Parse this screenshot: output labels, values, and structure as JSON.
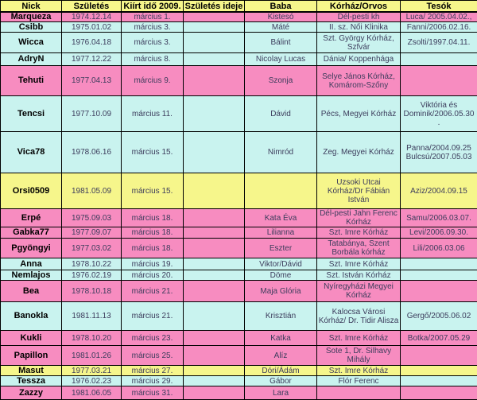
{
  "colors": {
    "header": "#f6f68b",
    "pink": "#f78cc0",
    "cyan": "#c9f3ef",
    "yellow": "#f6f68b",
    "border": "#000000",
    "data_text": "#3c3c5c"
  },
  "chart_data": {
    "type": "table",
    "title": "",
    "columns": [
      "Nick",
      "Születés",
      "Kiírt idő 2009.",
      "Születés ideje",
      "Baba",
      "Kórház/Orvos",
      "Tesók"
    ],
    "rows": [
      {
        "cells": [
          "Marqueza",
          "1974.12.14",
          "március 1.",
          "",
          "Kistesó",
          "Dél-pesti kh",
          "Luca/ 2005.04.02.,"
        ],
        "color": "pink",
        "height": 12
      },
      {
        "cells": [
          "Csibb",
          "1975.01.02",
          "március 3.",
          "",
          "Máté",
          "II. sz. Női Klinika",
          "Fanni/2006.02.16."
        ],
        "color": "cyan",
        "height": 13
      },
      {
        "cells": [
          "Wicca",
          "1976.04.18",
          "március 3.",
          "",
          "Bálint",
          "Szt. György Kórház, Szfvár",
          "Zsolti/1997.04.11."
        ],
        "color": "cyan",
        "height": 26
      },
      {
        "cells": [
          "AdryN",
          "1977.12.22",
          "március 8.",
          "",
          "Nicolay Lucas",
          "Dánia/ Koppenhága",
          ""
        ],
        "color": "cyan",
        "height": 16
      },
      {
        "cells": [
          "Tehuti",
          "1977.04.13",
          "március 9.",
          "",
          "Szonja",
          "Selye János Kórház, Komárom-Szőny",
          ""
        ],
        "color": "pink",
        "height": 38
      },
      {
        "cells": [
          "Tencsi",
          "1977.10.09",
          "március 11.",
          "",
          "Dávid",
          "Pécs, Megyei Kórház",
          "Viktória és Dominik/2006.05.30 ."
        ],
        "color": "cyan",
        "height": 45
      },
      {
        "cells": [
          "Vica78",
          "1978.06.16",
          "március 15.",
          "",
          "Nimród",
          "Zeg. Megyei Kórház",
          "Panna/2004.09.25 Bulcsú/2007.05.03"
        ],
        "color": "cyan",
        "height": 52
      },
      {
        "cells": [
          "Orsi0509",
          "1981.05.09",
          "március 15.",
          "",
          "",
          "Uzsoki Utcai Kórház/Dr Fábián István",
          "Aziz/2004.09.15"
        ],
        "color": "yellow",
        "height": 45
      },
      {
        "cells": [
          "Erpé",
          "1975.09.03",
          "március 18.",
          "",
          "Kata Éva",
          "Dél-pesti Jahn Ferenc Kórház",
          "Samu/2006.03.07."
        ],
        "color": "pink",
        "height": 23
      },
      {
        "cells": [
          "Gabka77",
          "1977.09.07",
          "március 18.",
          "",
          "Lilianna",
          "Szt. Imre Kórház",
          "Levi/2006.09.30."
        ],
        "color": "pink",
        "height": 14
      },
      {
        "cells": [
          "Pgyöngyi",
          "1977.03.02",
          "március 18.",
          "",
          "Eszter",
          "Tatabánya, Szent Borbála kórház",
          "Lili/2006.03.06"
        ],
        "color": "pink",
        "height": 25
      },
      {
        "cells": [
          "Anna",
          "1978.10.22",
          "március 19.",
          "",
          "Viktor/Dávid",
          "Szt. Imre Kórház",
          ""
        ],
        "color": "cyan",
        "height": 15
      },
      {
        "cells": [
          "Nemlajos",
          "1976.02.19",
          "március 20.",
          "",
          "Döme",
          "Szt. István Kórház",
          ""
        ],
        "color": "cyan",
        "height": 13
      },
      {
        "cells": [
          "Bea",
          "1978.10.18",
          "március 21.",
          "",
          "Maja  Glória",
          "Nyíregyházi Megyei Kórház",
          ""
        ],
        "color": "pink",
        "height": 27
      },
      {
        "cells": [
          "Banokla",
          "1981.11.13",
          "március 21.",
          "",
          "Krisztián",
          "Kalocsa Városi Kórház/ Dr. Tidir Alisza",
          "Gergő/2005.06.02"
        ],
        "color": "cyan",
        "height": 36
      },
      {
        "cells": [
          "Kukli",
          "1978.10.20",
          "március 23.",
          "",
          "Katka",
          "Szt. Imre Kórház",
          "Botka/2007.05.29"
        ],
        "color": "pink",
        "height": 19
      },
      {
        "cells": [
          "Papillon",
          "1981.01.26",
          "március 25.",
          "",
          "Alíz",
          "Sote 1, Dr. Silhavy Mihály",
          ""
        ],
        "color": "pink",
        "height": 25
      },
      {
        "cells": [
          "Masut",
          "1977.03.21",
          "március 27.",
          "",
          "Dóri/Ádám",
          "Szt. Imre Kórház",
          ""
        ],
        "color": "yellow",
        "height": 13
      },
      {
        "cells": [
          "Tessza",
          "1976.02.23",
          "március 29.",
          "",
          "Gábor",
          "Flór Ferenc",
          ""
        ],
        "color": "cyan",
        "height": 13
      },
      {
        "cells": [
          "Zazzy",
          "1981.06.05",
          "március 31.",
          "",
          "Lara",
          "",
          ""
        ],
        "color": "pink",
        "height": 17
      }
    ]
  }
}
